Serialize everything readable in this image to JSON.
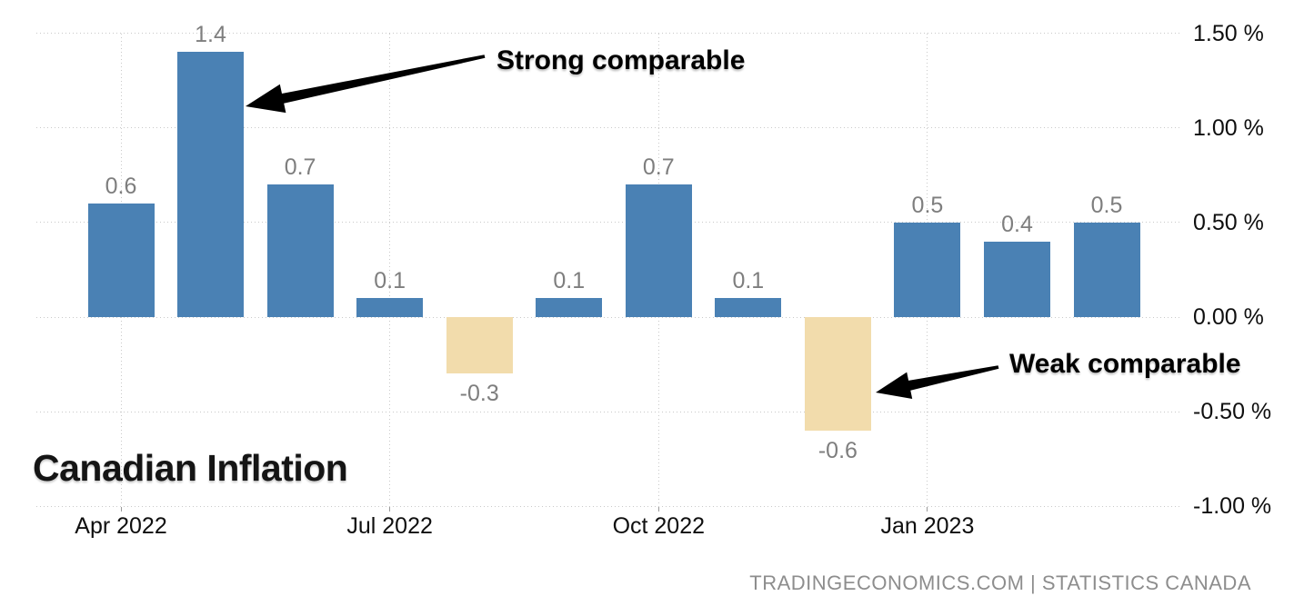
{
  "title": "Canadian Inflation",
  "annotations": [
    {
      "text": "Strong comparable",
      "points_to": "May 2022 bar (1.4)"
    },
    {
      "text": "Weak comparable",
      "points_to": "Dec 2022 bar (-0.6)"
    }
  ],
  "footer": {
    "attribution": "TRADINGECONOMICS.COM | STATISTICS CANADA"
  },
  "chart_data": {
    "type": "bar",
    "title": "Canadian Inflation",
    "categories": [
      "Apr 2022",
      "May 2022",
      "Jun 2022",
      "Jul 2022",
      "Aug 2022",
      "Sep 2022",
      "Oct 2022",
      "Nov 2022",
      "Dec 2022",
      "Jan 2023",
      "Feb 2023",
      "Mar 2023"
    ],
    "values": [
      0.6,
      1.4,
      0.7,
      0.1,
      -0.3,
      0.1,
      0.7,
      0.1,
      -0.6,
      0.5,
      0.4,
      0.5
    ],
    "bar_value_labels": [
      "0.6",
      "1.4",
      "0.7",
      "0.1",
      "-0.3",
      "0.1",
      "0.7",
      "0.1",
      "-0.6",
      "0.5",
      "0.4",
      "0.5"
    ],
    "x_tick_labels": [
      "Apr 2022",
      "Jul 2022",
      "Oct 2022",
      "Jan 2023"
    ],
    "x_tick_category_indexes": [
      0,
      3,
      6,
      9
    ],
    "y_tick_labels": [
      "1.50 %",
      "1.00 %",
      "0.50 %",
      "0.00 %",
      "-0.50 %",
      "-1.00 %"
    ],
    "y_tick_values": [
      1.5,
      1.0,
      0.5,
      0.0,
      -0.5,
      -1.0
    ],
    "ylim": [
      -1.0,
      1.5
    ],
    "unit": "%",
    "grid": "dotted",
    "legend": "none",
    "colors": {
      "positive_bar": "#4a81b4",
      "negative_bar": "#f2dcac",
      "gridline": "#c9c9c9",
      "value_label": "#7e7e7e",
      "axis_label": "#0f0f0f",
      "attribution": "#8d8d8d",
      "annotation": "#000000"
    }
  }
}
